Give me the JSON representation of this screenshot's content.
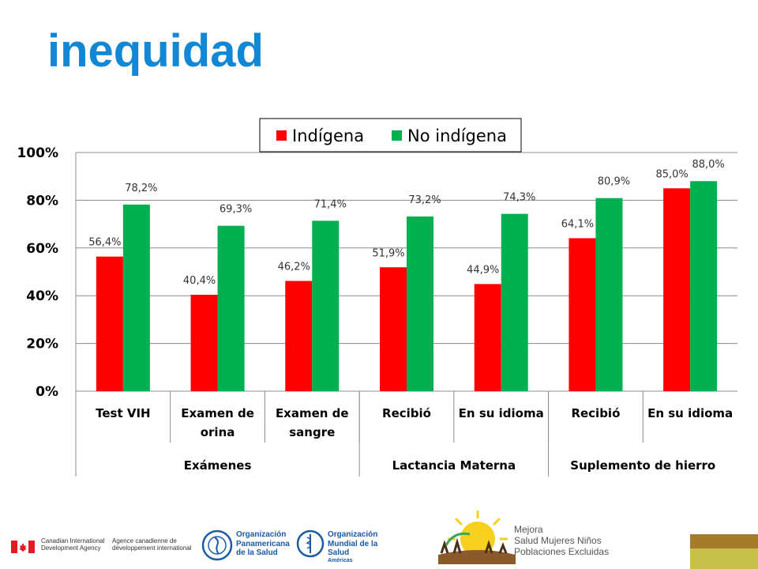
{
  "slide": {
    "title": "inequidad"
  },
  "chart_data": {
    "type": "bar",
    "title": "",
    "xlabel": "",
    "ylabel": "",
    "ylim": [
      0,
      100
    ],
    "y_ticks": [
      "0%",
      "20%",
      "40%",
      "60%",
      "80%",
      "100%"
    ],
    "grid": true,
    "legend_position": "top",
    "categories": [
      [
        "Test VIH"
      ],
      [
        "Examen de",
        "orina"
      ],
      [
        "Examen de",
        "sangre"
      ],
      [
        "Recibió"
      ],
      [
        "En su idioma"
      ],
      [
        "Recibió"
      ],
      [
        "En su idioma"
      ]
    ],
    "groups": [
      {
        "label": "Exámenes",
        "span": 3
      },
      {
        "label": "Lactancia Materna",
        "span": 2
      },
      {
        "label": "Suplemento de hierro",
        "span": 2
      }
    ],
    "series": [
      {
        "name": "Indígena",
        "color": "#ff0000",
        "values": [
          56.4,
          40.4,
          46.2,
          51.9,
          44.9,
          64.1,
          85.0
        ],
        "labels": [
          "56,4%",
          "40,4%",
          "46,2%",
          "51,9%",
          "44,9%",
          "64,1%",
          "85,0%"
        ]
      },
      {
        "name": "No indígena",
        "color": "#00b050",
        "values": [
          78.2,
          69.3,
          71.4,
          73.2,
          74.3,
          80.9,
          88.0
        ],
        "labels": [
          "78,2%",
          "69,3%",
          "71,4%",
          "73,2%",
          "74,3%",
          "80,9%",
          "88,0%"
        ]
      }
    ]
  },
  "footer": {
    "cida_en": [
      "Canadian International",
      "Development Agency"
    ],
    "cida_fr": [
      "Agence canadienne de",
      "développement international"
    ],
    "ops": [
      "Organización",
      "Panamericana",
      "de la Salud"
    ],
    "oms": [
      "Organización",
      "Mundial de la Salud"
    ],
    "oms_sub": "Américas",
    "mejora": [
      "Mejora",
      "Salud Mujeres Niños",
      "Poblaciones Excluidas"
    ]
  }
}
